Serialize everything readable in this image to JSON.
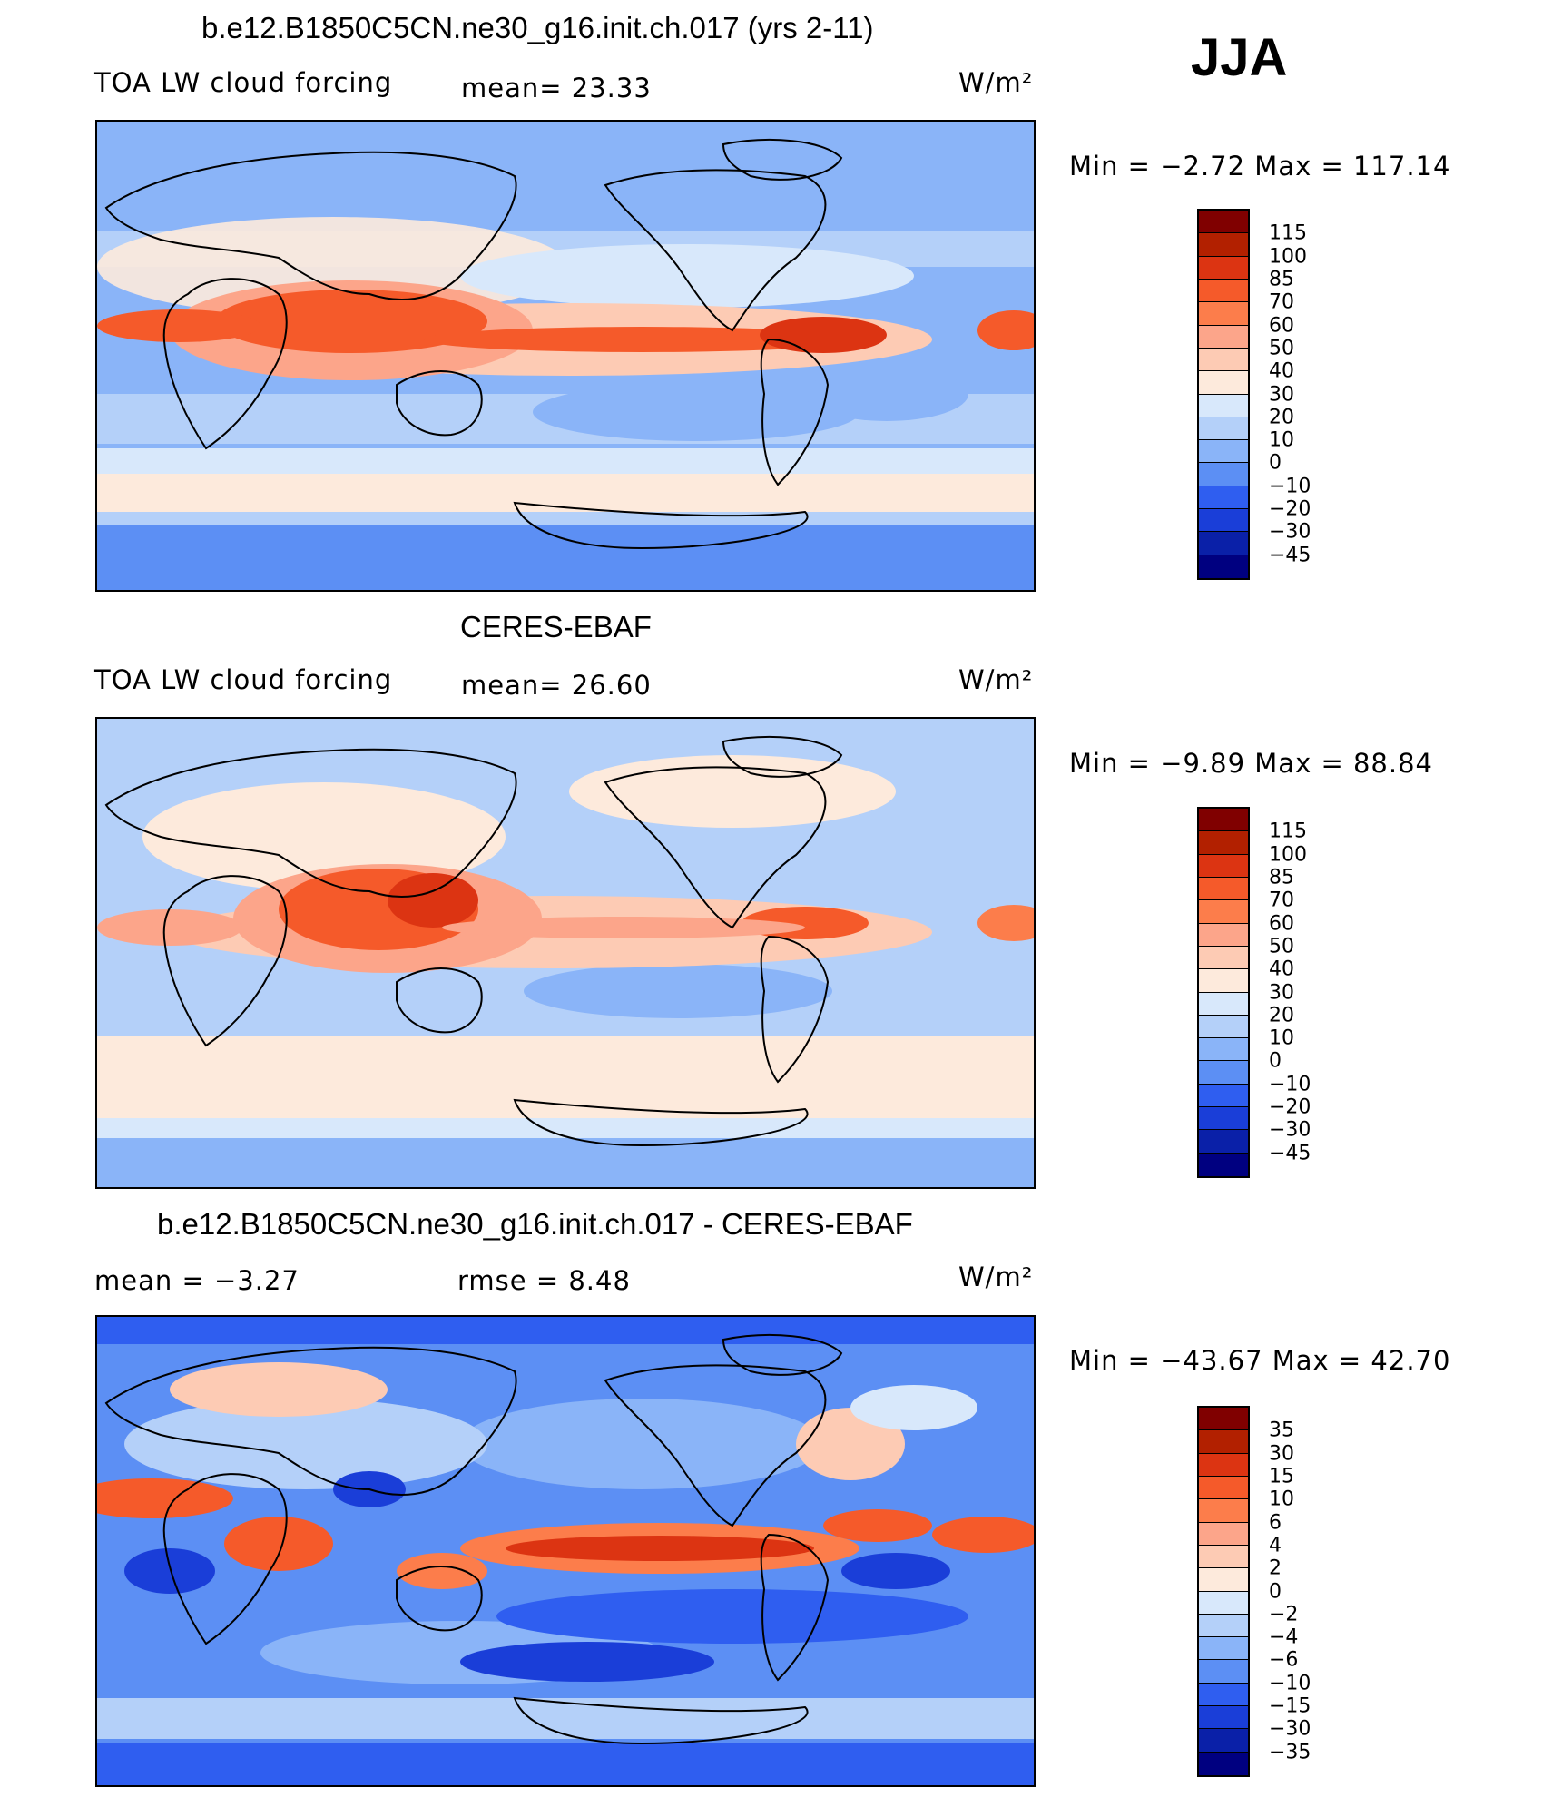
{
  "season": "JJA",
  "units": "W/m²",
  "panels": [
    {
      "id": "model",
      "title": "b.e12.B1850C5CN.ne30_g16.init.ch.017 (yrs 2-11)",
      "left_label": "TOA LW cloud forcing",
      "center_label": "mean=  23.33",
      "units": "W/m²",
      "minmax": "Min =   −2.72  Max  =  117.14",
      "colorbar": {
        "labels": [
          "115",
          "100",
          "85",
          "70",
          "60",
          "50",
          "40",
          "30",
          "20",
          "10",
          "0",
          "−10",
          "−20",
          "−30",
          "−45"
        ],
        "colors": [
          "#800000",
          "#b22000",
          "#dc3412",
          "#f55a2a",
          "#fc7d4b",
          "#fca58a",
          "#fdcbb4",
          "#fdeadc",
          "#d8e8fb",
          "#b4d0f9",
          "#8ab4f8",
          "#5c8ff4",
          "#2f5ef0",
          "#1a3ed8",
          "#0a20a8",
          "#000080"
        ]
      }
    },
    {
      "id": "obs",
      "title": "CERES-EBAF",
      "left_label": "TOA LW cloud forcing",
      "center_label": "mean=  26.60",
      "units": "W/m²",
      "minmax": "Min =   −9.89  Max  =   88.84",
      "colorbar": {
        "labels": [
          "115",
          "100",
          "85",
          "70",
          "60",
          "50",
          "40",
          "30",
          "20",
          "10",
          "0",
          "−10",
          "−20",
          "−30",
          "−45"
        ],
        "colors": [
          "#800000",
          "#b22000",
          "#dc3412",
          "#f55a2a",
          "#fc7d4b",
          "#fca58a",
          "#fdcbb4",
          "#fdeadc",
          "#d8e8fb",
          "#b4d0f9",
          "#8ab4f8",
          "#5c8ff4",
          "#2f5ef0",
          "#1a3ed8",
          "#0a20a8",
          "#000080"
        ]
      }
    },
    {
      "id": "diff",
      "title": "b.e12.B1850C5CN.ne30_g16.init.ch.017 - CERES-EBAF",
      "left_label": "mean =   −3.27",
      "center_label": "rmse =    8.48",
      "units": "W/m²",
      "minmax": "Min = −43.67  Max  =   42.70",
      "colorbar": {
        "labels": [
          "35",
          "30",
          "15",
          "10",
          "6",
          "4",
          "2",
          "0",
          "−2",
          "−4",
          "−6",
          "−10",
          "−15",
          "−30",
          "−35"
        ],
        "colors": [
          "#800000",
          "#b22000",
          "#dc3412",
          "#f55a2a",
          "#fc7d4b",
          "#fca58a",
          "#fdcbb4",
          "#fdeadc",
          "#d8e8fb",
          "#b4d0f9",
          "#8ab4f8",
          "#5c8ff4",
          "#2f5ef0",
          "#1a3ed8",
          "#0a20a8",
          "#000080"
        ]
      }
    }
  ]
}
